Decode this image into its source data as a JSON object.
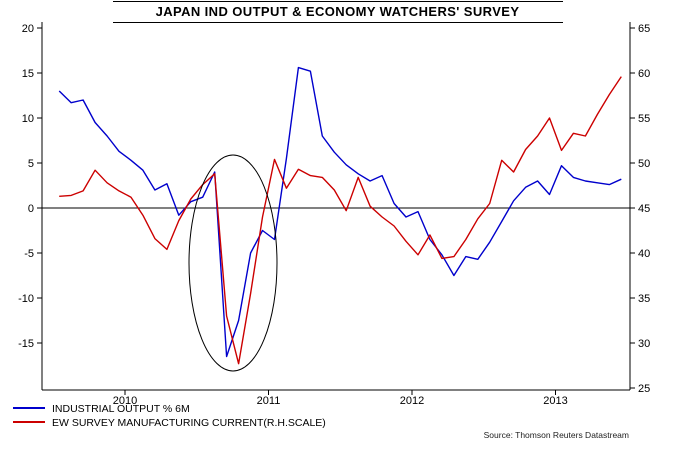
{
  "title": "JAPAN IND OUTPUT & ECONOMY WATCHERS' SURVEY",
  "source": "Source: Thomson Reuters Datastream",
  "legend": [
    {
      "label": "INDUSTRIAL OUTPUT % 6M",
      "color": "#0000cc"
    },
    {
      "label": "EW SURVEY MANUFACTURING CURRENT(R.H.SCALE)",
      "color": "#cc0000"
    }
  ],
  "chart_data": {
    "type": "line",
    "title": "JAPAN IND OUTPUT & ECONOMY WATCHERS' SURVEY",
    "frequency": "monthly",
    "x_start": "2010-01",
    "x_end": "2013-12",
    "x_tick_labels": [
      "2010",
      "2011",
      "2012",
      "2013"
    ],
    "left_axis": {
      "min": -20,
      "max": 20,
      "ticks": [
        20,
        15,
        10,
        5,
        0,
        -5,
        -10,
        -15
      ],
      "zero_line": true
    },
    "right_axis": {
      "min": 25,
      "max": 65,
      "ticks": [
        65,
        60,
        55,
        50,
        45,
        40,
        35,
        30,
        25
      ]
    },
    "grid": false,
    "legend_position": "bottom-left",
    "series": [
      {
        "name": "INDUSTRIAL OUTPUT % 6M",
        "axis": "left",
        "color": "#0000cc",
        "values": [
          13.0,
          11.7,
          12.0,
          9.5,
          8.0,
          6.3,
          5.3,
          4.2,
          2.0,
          2.7,
          -0.8,
          0.7,
          1.2,
          4.0,
          -16.5,
          -12.5,
          -5.0,
          -2.5,
          -3.5,
          5.5,
          15.6,
          15.2,
          8.0,
          6.2,
          4.8,
          3.8,
          3.0,
          3.6,
          0.5,
          -1.0,
          -0.4,
          -3.5,
          -5.2,
          -7.5,
          -5.4,
          -5.7,
          -3.8,
          -1.5,
          0.8,
          2.3,
          3.0,
          1.5,
          4.7,
          3.4,
          3.0,
          2.8,
          2.6,
          3.2
        ]
      },
      {
        "name": "EW SURVEY MANUFACTURING CURRENT(R.H.SCALE)",
        "axis": "right",
        "color": "#cc0000",
        "values": [
          46.3,
          46.4,
          46.9,
          49.2,
          47.8,
          46.9,
          46.2,
          44.2,
          41.6,
          40.4,
          43.6,
          46.0,
          47.6,
          48.8,
          33.0,
          27.7,
          35.5,
          44.0,
          50.4,
          47.2,
          49.3,
          48.6,
          48.4,
          47.0,
          44.7,
          48.4,
          45.2,
          44.0,
          43.0,
          41.3,
          39.8,
          42.0,
          39.4,
          39.6,
          41.5,
          43.8,
          45.5,
          50.3,
          49.0,
          51.5,
          53.0,
          55.0,
          51.4,
          53.3,
          53.0,
          55.4,
          57.6,
          59.6
        ]
      }
    ],
    "annotation": {
      "shape": "ellipse",
      "circled_period": "2011 collapse"
    }
  }
}
